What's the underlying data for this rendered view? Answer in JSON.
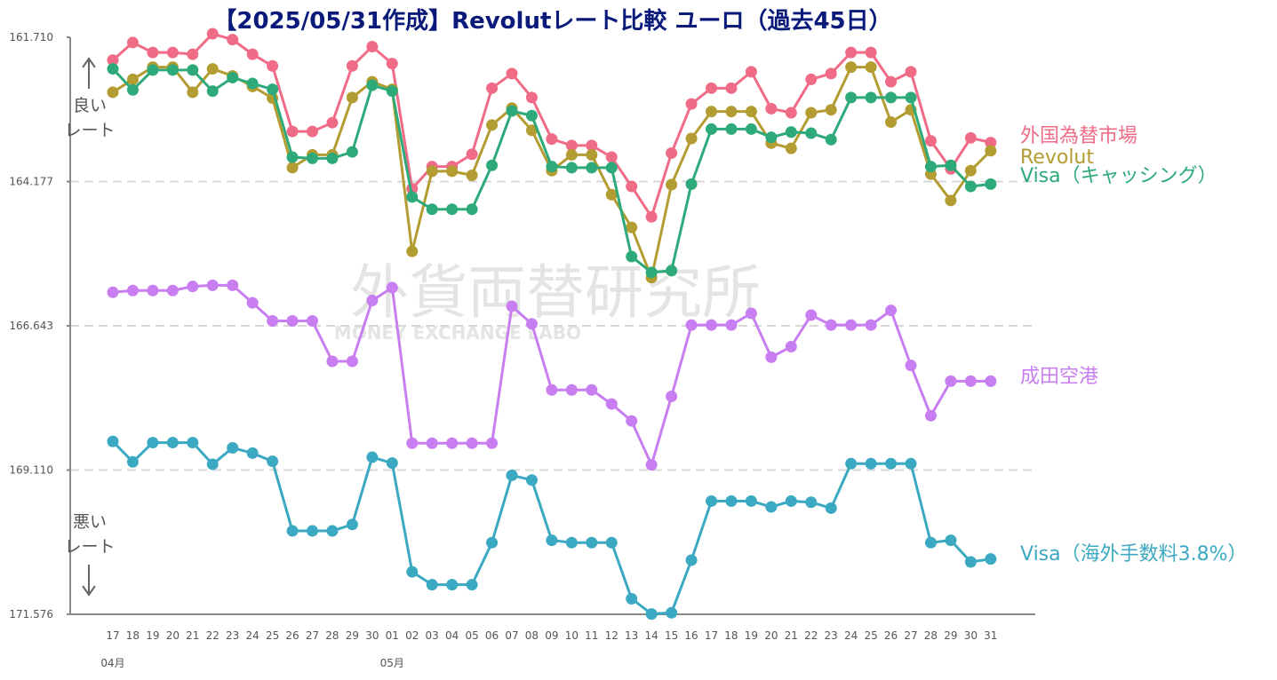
{
  "chart_data": {
    "type": "line",
    "title": "【2025/05/31作成】Revolutレート比較 ユーロ（過去45日）",
    "y_ticks": [
      "161.710",
      "164.177",
      "166.643",
      "169.110",
      "171.576"
    ],
    "ylim": [
      161.71,
      171.576
    ],
    "y_inverted": true,
    "grid": "horizontal-dashed",
    "x": [
      "17",
      "18",
      "19",
      "20",
      "21",
      "22",
      "23",
      "24",
      "25",
      "26",
      "27",
      "28",
      "29",
      "30",
      "01",
      "02",
      "03",
      "04",
      "05",
      "06",
      "07",
      "08",
      "09",
      "10",
      "11",
      "12",
      "13",
      "14",
      "15",
      "16",
      "17",
      "18",
      "19",
      "20",
      "21",
      "22",
      "23",
      "24",
      "25",
      "26",
      "27",
      "28",
      "29",
      "30",
      "31"
    ],
    "month_labels": [
      {
        "index": 0,
        "label": "04月"
      },
      {
        "index": 14,
        "label": "05月"
      }
    ],
    "side_labels": {
      "good": "良い\nレート",
      "bad": "悪い\nレート"
    },
    "watermark": {
      "main": "外貨両替研究所",
      "sub": "MONEY EXCHANGE LABO"
    },
    "series": [
      {
        "name": "外国為替市場",
        "color": "#f06b86",
        "values": [
          162.1,
          161.8,
          161.97,
          161.97,
          162.0,
          161.65,
          161.75,
          162.0,
          162.2,
          163.32,
          163.32,
          163.17,
          162.2,
          161.87,
          162.16,
          164.3,
          163.92,
          163.92,
          163.71,
          162.58,
          162.33,
          162.74,
          163.45,
          163.56,
          163.56,
          163.76,
          164.26,
          164.78,
          163.69,
          162.85,
          162.58,
          162.58,
          162.3,
          162.93,
          163.0,
          162.43,
          162.33,
          161.97,
          161.97,
          162.47,
          162.3,
          163.48,
          163.96,
          163.43,
          163.51
        ]
      },
      {
        "name": "Revolut",
        "color": "#b39c31",
        "values": [
          162.65,
          162.43,
          162.22,
          162.22,
          162.65,
          162.25,
          162.37,
          162.55,
          162.75,
          163.94,
          163.72,
          163.72,
          162.74,
          162.47,
          162.6,
          165.37,
          164.0,
          164.0,
          164.07,
          163.21,
          162.92,
          163.3,
          163.99,
          163.72,
          163.72,
          164.4,
          164.96,
          165.82,
          164.23,
          163.44,
          162.98,
          162.98,
          162.98,
          163.52,
          163.61,
          163.0,
          162.95,
          162.22,
          162.22,
          163.16,
          162.95,
          164.05,
          164.5,
          163.99,
          163.65
        ]
      },
      {
        "name": "Visa（キャッシング）",
        "color": "#2eaa7a",
        "values": [
          162.25,
          162.61,
          162.27,
          162.27,
          162.27,
          162.63,
          162.4,
          162.5,
          162.6,
          163.76,
          163.78,
          163.78,
          163.67,
          162.53,
          162.63,
          164.44,
          164.65,
          164.65,
          164.65,
          163.9,
          162.97,
          163.05,
          163.92,
          163.94,
          163.94,
          163.94,
          165.46,
          165.73,
          165.7,
          164.22,
          163.28,
          163.28,
          163.28,
          163.42,
          163.33,
          163.35,
          163.46,
          162.74,
          162.74,
          162.74,
          162.74,
          163.92,
          163.9,
          164.26,
          164.22
        ]
      },
      {
        "name": "成田空港",
        "color": "#c87ef0",
        "values": [
          166.07,
          166.04,
          166.04,
          166.04,
          165.97,
          165.95,
          165.95,
          166.25,
          166.56,
          166.56,
          166.56,
          167.25,
          167.25,
          166.21,
          165.99,
          168.65,
          168.65,
          168.65,
          168.65,
          168.65,
          166.31,
          166.61,
          167.74,
          167.74,
          167.74,
          167.98,
          168.27,
          169.02,
          167.85,
          166.63,
          166.63,
          166.63,
          166.43,
          167.18,
          167.0,
          166.46,
          166.63,
          166.63,
          166.63,
          166.38,
          167.32,
          168.18,
          167.59,
          167.59,
          167.59
        ]
      },
      {
        "name": "Visa（海外手数料3.8%）",
        "color": "#3aa9c1",
        "values": [
          168.62,
          168.97,
          168.64,
          168.64,
          168.64,
          169.01,
          168.73,
          168.82,
          168.96,
          170.15,
          170.15,
          170.15,
          170.04,
          168.89,
          168.99,
          170.85,
          171.07,
          171.07,
          171.07,
          170.35,
          169.2,
          169.28,
          170.31,
          170.35,
          170.35,
          170.35,
          171.31,
          171.57,
          171.55,
          170.65,
          169.64,
          169.64,
          169.64,
          169.74,
          169.64,
          169.66,
          169.76,
          169.0,
          169.0,
          169.0,
          169.0,
          170.35,
          170.31,
          170.68,
          170.63
        ]
      }
    ]
  }
}
